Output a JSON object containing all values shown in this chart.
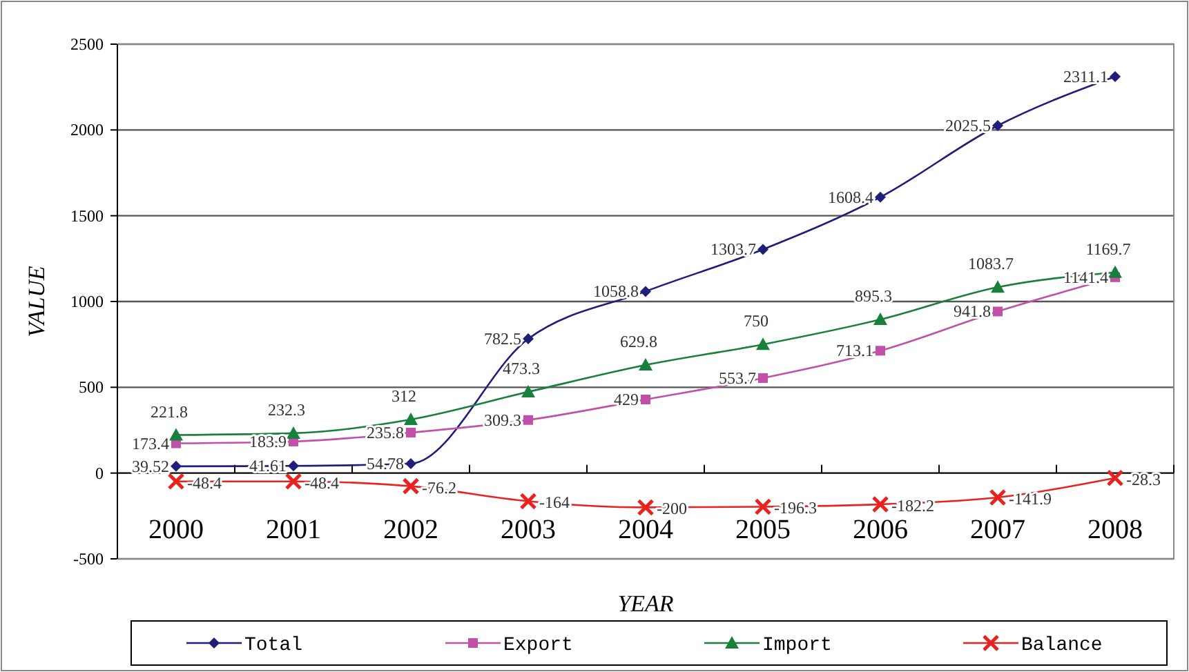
{
  "chart_data": {
    "type": "line",
    "xlabel": "YEAR",
    "ylabel": "VALUE",
    "categories": [
      "2000",
      "2001",
      "2002",
      "2003",
      "2004",
      "2005",
      "2006",
      "2007",
      "2008"
    ],
    "series": [
      {
        "name": "Total",
        "color": "#1f1f7a",
        "marker": "diamond",
        "values": [
          39.52,
          41.61,
          54.78,
          782.5,
          1058.8,
          1303.7,
          1608.4,
          2025.5,
          2311.1
        ]
      },
      {
        "name": "Export",
        "color": "#c050a8",
        "marker": "square",
        "values": [
          173.4,
          183.9,
          235.8,
          309.3,
          429,
          553.7,
          713.1,
          941.8,
          1141.4
        ]
      },
      {
        "name": "Import",
        "color": "#17803a",
        "marker": "triangle",
        "values": [
          221.8,
          232.3,
          312,
          473.3,
          629.8,
          750,
          895.3,
          1083.7,
          1169.7
        ]
      },
      {
        "name": "Balance",
        "color": "#e8231f",
        "marker": "cross",
        "values": [
          -48.4,
          -48.4,
          -76.2,
          -164,
          -200,
          -196.3,
          -182.2,
          -141.9,
          -28.3
        ]
      }
    ],
    "ylim": [
      -500,
      2500
    ],
    "yticks": [
      -500,
      0,
      500,
      1000,
      1500,
      2000,
      2500
    ],
    "grid": "y",
    "legend": "bottom",
    "data_labels": true
  }
}
